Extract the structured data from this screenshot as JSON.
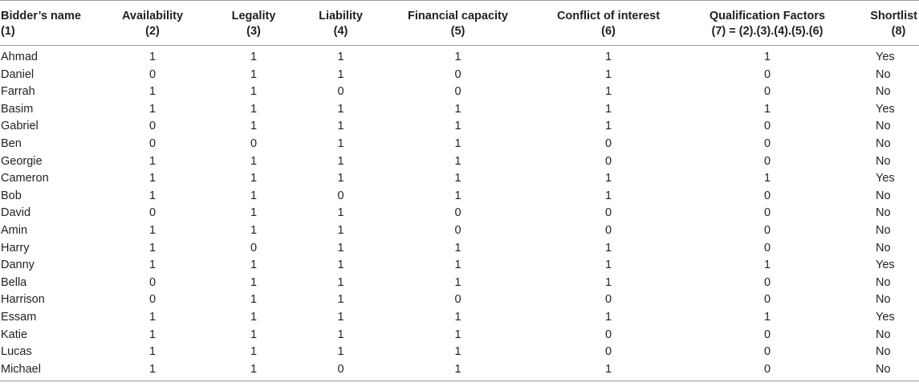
{
  "table": {
    "headers": [
      {
        "line1": "Bidder’s name",
        "line2": "(1)"
      },
      {
        "line1": "Availability",
        "line2": "(2)"
      },
      {
        "line1": "Legality",
        "line2": "(3)"
      },
      {
        "line1": "Liability",
        "line2": "(4)"
      },
      {
        "line1": "Financial capacity",
        "line2": "(5)"
      },
      {
        "line1": "Conflict of interest",
        "line2": "(6)"
      },
      {
        "line1": "Qualification Factors",
        "line2": "(7) = (2).(3).(4).(5).(6)"
      },
      {
        "line1": "Shortlist",
        "line2": "(8)"
      }
    ],
    "rows": [
      [
        "Ahmad",
        "1",
        "1",
        "1",
        "1",
        "1",
        "1",
        "Yes"
      ],
      [
        "Daniel",
        "0",
        "1",
        "1",
        "0",
        "1",
        "0",
        "No"
      ],
      [
        "Farrah",
        "1",
        "1",
        "0",
        "0",
        "1",
        "0",
        "No"
      ],
      [
        "Basim",
        "1",
        "1",
        "1",
        "1",
        "1",
        "1",
        "Yes"
      ],
      [
        "Gabriel",
        "0",
        "1",
        "1",
        "1",
        "1",
        "0",
        "No"
      ],
      [
        "Ben",
        "0",
        "0",
        "1",
        "1",
        "0",
        "0",
        "No"
      ],
      [
        "Georgie",
        "1",
        "1",
        "1",
        "1",
        "0",
        "0",
        "No"
      ],
      [
        "Cameron",
        "1",
        "1",
        "1",
        "1",
        "1",
        "1",
        "Yes"
      ],
      [
        "Bob",
        "1",
        "1",
        "0",
        "1",
        "1",
        "0",
        "No"
      ],
      [
        "David",
        "0",
        "1",
        "1",
        "0",
        "0",
        "0",
        "No"
      ],
      [
        "Amin",
        "1",
        "1",
        "1",
        "0",
        "0",
        "0",
        "No"
      ],
      [
        "Harry",
        "1",
        "0",
        "1",
        "1",
        "1",
        "0",
        "No"
      ],
      [
        "Danny",
        "1",
        "1",
        "1",
        "1",
        "1",
        "1",
        "Yes"
      ],
      [
        "Bella",
        "0",
        "1",
        "1",
        "1",
        "1",
        "0",
        "No"
      ],
      [
        "Harrison",
        "0",
        "1",
        "1",
        "0",
        "0",
        "0",
        "No"
      ],
      [
        "Essam",
        "1",
        "1",
        "1",
        "1",
        "1",
        "1",
        "Yes"
      ],
      [
        "Katie",
        "1",
        "1",
        "1",
        "1",
        "0",
        "0",
        "No"
      ],
      [
        "Lucas",
        "1",
        "1",
        "1",
        "1",
        "0",
        "0",
        "No"
      ],
      [
        "Michael",
        "1",
        "1",
        "0",
        "1",
        "1",
        "0",
        "No"
      ]
    ]
  }
}
